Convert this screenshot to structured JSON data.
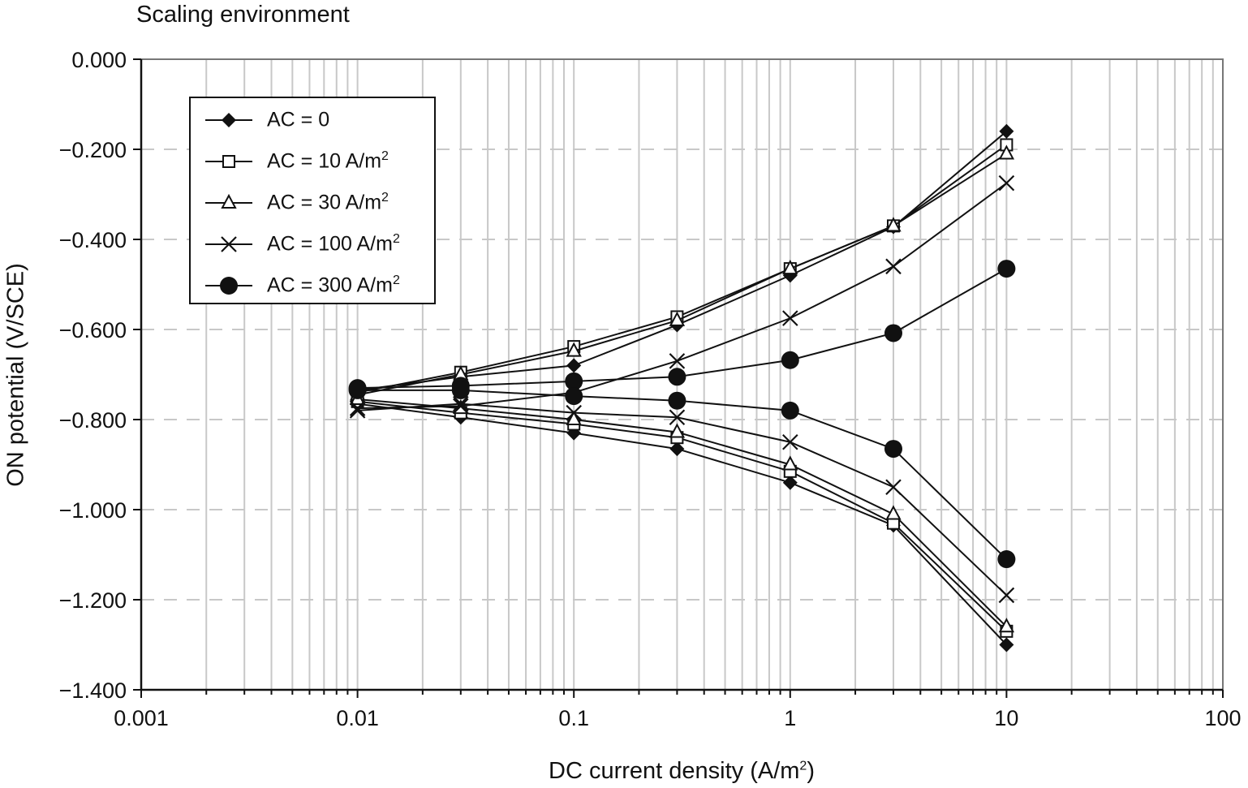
{
  "chart_data": {
    "type": "line",
    "title": "Scaling environment",
    "xlabel": "DC current density (A/m",
    "xlabel_sup": "2",
    "xlabel_end": ")",
    "ylabel": "ON potential (V/SCE)",
    "xscale": "log",
    "xlim": [
      0.001,
      100
    ],
    "ylim": [
      -1.4,
      0.0
    ],
    "x_ticks": [
      0.001,
      0.01,
      0.1,
      1,
      10,
      100
    ],
    "x_tick_labels": [
      "0.001",
      "0.01",
      "0.1",
      "1",
      "10",
      "100"
    ],
    "y_ticks": [
      0.0,
      -0.2,
      -0.4,
      -0.6,
      -0.8,
      -1.0,
      -1.2,
      -1.4
    ],
    "y_tick_labels": [
      "0.000",
      "−0.200",
      "−0.400",
      "−0.600",
      "−0.800",
      "−1.000",
      "−1.200",
      "−1.400"
    ],
    "grid": {
      "x_major_minor": true,
      "y_dashed": true
    },
    "legend_position": "top-left",
    "x": [
      0.01,
      0.03,
      0.1,
      0.3,
      1,
      3,
      10
    ],
    "series": [
      {
        "name": "AC = 0",
        "label_main": "AC = 0",
        "label_sup": "",
        "marker": "diamond",
        "anodic": [
          -0.735,
          -0.705,
          -0.68,
          -0.59,
          -0.48,
          -0.372,
          -0.16
        ],
        "cathodic": [
          -0.765,
          -0.795,
          -0.83,
          -0.865,
          -0.94,
          -1.035,
          -1.3
        ]
      },
      {
        "name": "AC = 10 A/m2",
        "label_main": "AC = 10 A/m",
        "label_sup": "2",
        "marker": "square",
        "anodic": [
          -0.74,
          -0.695,
          -0.638,
          -0.572,
          -0.465,
          -0.37,
          -0.19
        ],
        "cathodic": [
          -0.76,
          -0.785,
          -0.81,
          -0.84,
          -0.915,
          -1.03,
          -1.27
        ]
      },
      {
        "name": "AC = 30 A/m2",
        "label_main": "AC = 30 A/m",
        "label_sup": "2",
        "marker": "triangle",
        "anodic": [
          -0.745,
          -0.7,
          -0.648,
          -0.58,
          -0.465,
          -0.37,
          -0.21
        ],
        "cathodic": [
          -0.755,
          -0.775,
          -0.8,
          -0.828,
          -0.9,
          -1.01,
          -1.26
        ]
      },
      {
        "name": "AC = 100 A/m2",
        "label_main": "AC = 100 A/m",
        "label_sup": "2",
        "marker": "x",
        "anodic": [
          -0.775,
          -0.77,
          -0.74,
          -0.67,
          -0.575,
          -0.46,
          -0.275
        ],
        "cathodic": [
          -0.78,
          -0.765,
          -0.785,
          -0.795,
          -0.85,
          -0.95,
          -1.19
        ]
      },
      {
        "name": "AC = 300 A/m2",
        "label_main": "AC = 300 A/m",
        "label_sup": "2",
        "marker": "circle",
        "anodic": [
          -0.73,
          -0.725,
          -0.715,
          -0.705,
          -0.668,
          -0.608,
          -0.465
        ],
        "cathodic": [
          -0.735,
          -0.735,
          -0.748,
          -0.758,
          -0.78,
          -0.865,
          -1.11
        ]
      }
    ]
  }
}
